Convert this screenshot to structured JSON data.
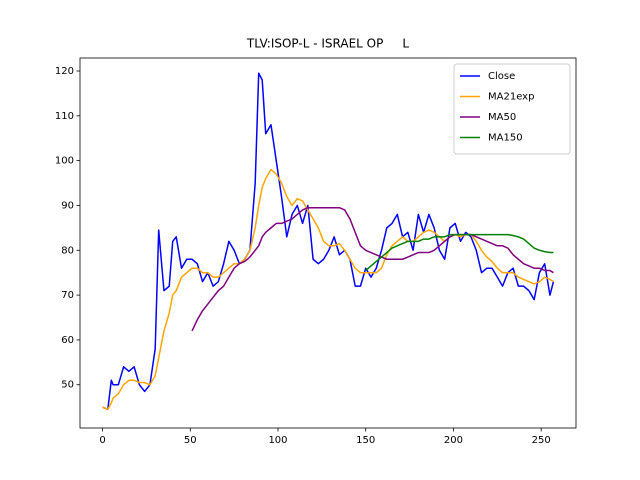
{
  "chart_data": {
    "type": "line",
    "title": "TLV:ISOP-L - ISRAEL OP     L",
    "x": [
      0,
      3,
      5,
      6,
      9,
      12,
      15,
      18,
      21,
      24,
      27,
      30,
      32,
      35,
      38,
      40,
      42,
      45,
      48,
      51,
      54,
      57,
      60,
      63,
      66,
      69,
      72,
      75,
      78,
      81,
      84,
      87,
      89,
      91,
      93,
      96,
      99,
      102,
      105,
      108,
      111,
      114,
      117,
      120,
      123,
      126,
      129,
      132,
      135,
      138,
      141,
      144,
      147,
      150,
      153,
      156,
      159,
      162,
      165,
      168,
      171,
      174,
      177,
      180,
      183,
      186,
      189,
      192,
      195,
      198,
      201,
      204,
      207,
      210,
      213,
      216,
      219,
      222,
      225,
      228,
      231,
      234,
      237,
      240,
      243,
      246,
      249,
      252,
      255,
      257
    ],
    "series": [
      {
        "name": "Close",
        "color": "#0000ff",
        "values": [
          45,
          44.5,
          51,
          50,
          50,
          54,
          53,
          54,
          50,
          48.5,
          50,
          58,
          84.5,
          71,
          72,
          82,
          83,
          76,
          78,
          78,
          77,
          73,
          75,
          72,
          73,
          77,
          82,
          80,
          77,
          78,
          80,
          95,
          119.5,
          118,
          106,
          108,
          100,
          92,
          83,
          88,
          90,
          86,
          90,
          78,
          77,
          78,
          80,
          83,
          79,
          80,
          78,
          72,
          72,
          76,
          74,
          76,
          80,
          85,
          86,
          88,
          83,
          84,
          80,
          88,
          84,
          88,
          85,
          80,
          78,
          85,
          86,
          82,
          84,
          83,
          80,
          75,
          76,
          76,
          74,
          72,
          75,
          76,
          72,
          72,
          71,
          69,
          75,
          77,
          70,
          73
        ]
      },
      {
        "name": "MA21exp",
        "color": "#ffa500",
        "values": [
          45,
          44.5,
          46,
          47,
          48,
          50,
          51,
          51,
          50.5,
          50.5,
          50,
          52,
          56,
          62,
          66,
          70,
          71,
          74,
          75,
          76,
          76,
          75,
          75,
          74,
          74,
          75,
          76,
          77,
          77,
          78,
          80,
          85,
          90,
          94,
          96,
          98,
          97,
          95,
          92,
          90,
          91.5,
          91,
          89,
          87,
          85,
          82,
          81,
          81,
          81.5,
          80,
          78,
          76,
          75,
          75,
          75,
          75,
          76,
          79,
          81,
          82,
          83,
          82,
          82,
          83,
          84,
          84.5,
          84,
          83,
          82,
          83,
          83.5,
          83,
          83.5,
          83.5,
          82,
          80,
          78.5,
          77.5,
          76,
          75,
          75,
          75,
          74,
          73.5,
          73,
          72.5,
          73,
          74,
          73.5,
          73
        ]
      },
      {
        "name": "MA50",
        "color": "#800080",
        "values": [
          null,
          null,
          null,
          null,
          null,
          null,
          null,
          null,
          null,
          null,
          null,
          null,
          null,
          null,
          null,
          null,
          null,
          null,
          null,
          62,
          64.5,
          66.5,
          68,
          69.5,
          71,
          72,
          74,
          76,
          77,
          77.5,
          78.5,
          80,
          81,
          83,
          84,
          85,
          86,
          86,
          86.5,
          87,
          88,
          89,
          89.5,
          89.5,
          89.5,
          89.5,
          89.5,
          89.5,
          89.5,
          89,
          87,
          84,
          81,
          80,
          79.5,
          79,
          78.5,
          78,
          78,
          78,
          78,
          78.5,
          79,
          79.5,
          79.5,
          79.5,
          80,
          81,
          82,
          83,
          83.5,
          83.5,
          83.5,
          83.5,
          83,
          82.5,
          82,
          81.5,
          81,
          81,
          80.5,
          79,
          78,
          77,
          76.5,
          76,
          76,
          75.5,
          75.5,
          75
        ]
      },
      {
        "name": "MA150",
        "color": "#008000",
        "values": [
          null,
          null,
          null,
          null,
          null,
          null,
          null,
          null,
          null,
          null,
          null,
          null,
          null,
          null,
          null,
          null,
          null,
          null,
          null,
          null,
          null,
          null,
          null,
          null,
          null,
          null,
          null,
          null,
          null,
          null,
          null,
          null,
          null,
          null,
          null,
          null,
          null,
          null,
          null,
          null,
          null,
          null,
          null,
          null,
          null,
          null,
          null,
          null,
          null,
          null,
          null,
          null,
          null,
          75.5,
          76.5,
          77.5,
          78.5,
          79.5,
          80.5,
          81,
          81.5,
          82,
          82,
          82,
          82.5,
          82.5,
          83,
          83,
          83,
          83.5,
          83.5,
          83.5,
          83.5,
          83.5,
          83.5,
          83.5,
          83.5,
          83.5,
          83.5,
          83.5,
          83.5,
          83.3,
          83,
          82.5,
          81.5,
          80.5,
          80,
          79.7,
          79.5,
          79.5
        ]
      }
    ],
    "xlim": [
      -12.85,
      269.85
    ],
    "ylim": [
      40.35,
      122.9
    ],
    "xticks": [
      0,
      50,
      100,
      150,
      200,
      250
    ],
    "yticks": [
      50,
      60,
      70,
      80,
      90,
      100,
      110,
      120
    ],
    "legend": "upper right"
  }
}
